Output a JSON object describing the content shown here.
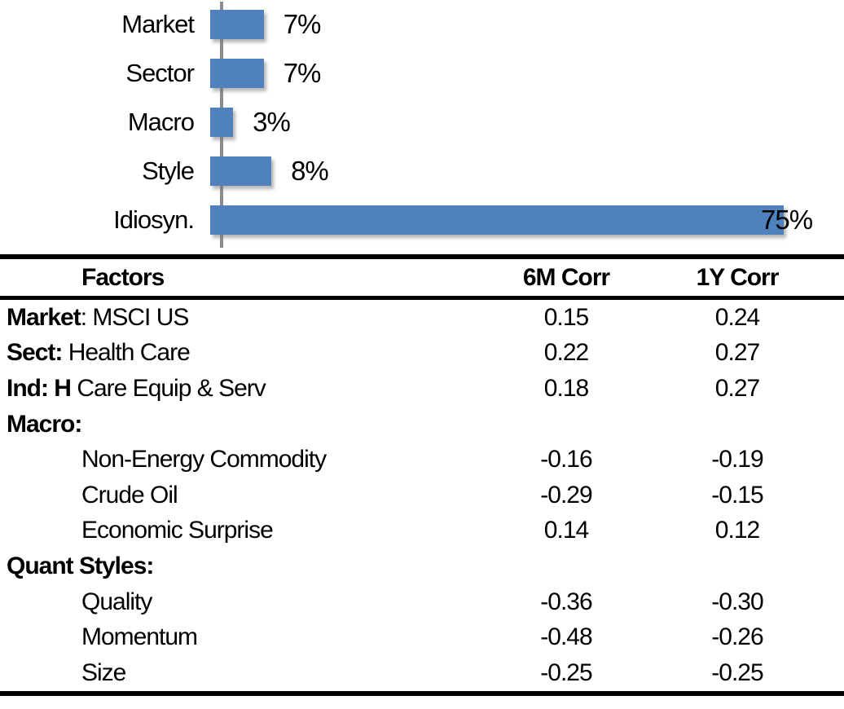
{
  "chart_data": {
    "type": "bar",
    "orientation": "horizontal",
    "title": "",
    "categories": [
      "Market",
      "Sector",
      "Macro",
      "Style",
      "Idiosyn."
    ],
    "values": [
      7,
      7,
      3,
      8,
      75
    ],
    "value_labels": [
      "7%",
      "7%",
      "3%",
      "8%",
      "75%"
    ],
    "xlim": [
      0,
      75
    ],
    "grid": false,
    "legend": false,
    "bar_color": "#4E81BD",
    "axis_color": "#8C8C8C"
  },
  "table": {
    "headers": {
      "factors": "Factors",
      "col1": "6M Corr",
      "col2": "1Y Corr"
    },
    "rows": [
      {
        "prefix": "Market",
        "rest": ": MSCI US",
        "c1": "0.15",
        "c2": "0.24"
      },
      {
        "prefix": "Sect:",
        "rest": " Health Care",
        "c1": "0.22",
        "c2": "0.27"
      },
      {
        "prefix": "Ind: H",
        "rest": " Care Equip & Serv",
        "c1": "0.18",
        "c2": "0.27"
      },
      {
        "prefix": "Macro:",
        "rest": "",
        "c1": "",
        "c2": ""
      },
      {
        "prefix": "",
        "rest": "Non-Energy Commodity",
        "c1": "-0.16",
        "c2": "-0.19"
      },
      {
        "prefix": "",
        "rest": "Crude Oil",
        "c1": "-0.29",
        "c2": "-0.15"
      },
      {
        "prefix": "",
        "rest": "Economic Surprise",
        "c1": "0.14",
        "c2": "0.12"
      },
      {
        "prefix": "Quant Styles:",
        "rest": "",
        "c1": "",
        "c2": ""
      },
      {
        "prefix": "",
        "rest": "Quality",
        "c1": "-0.36",
        "c2": "-0.30"
      },
      {
        "prefix": "",
        "rest": "Momentum",
        "c1": "-0.48",
        "c2": "-0.26"
      },
      {
        "prefix": "",
        "rest": "Size",
        "c1": "-0.25",
        "c2": "-0.25"
      }
    ]
  }
}
